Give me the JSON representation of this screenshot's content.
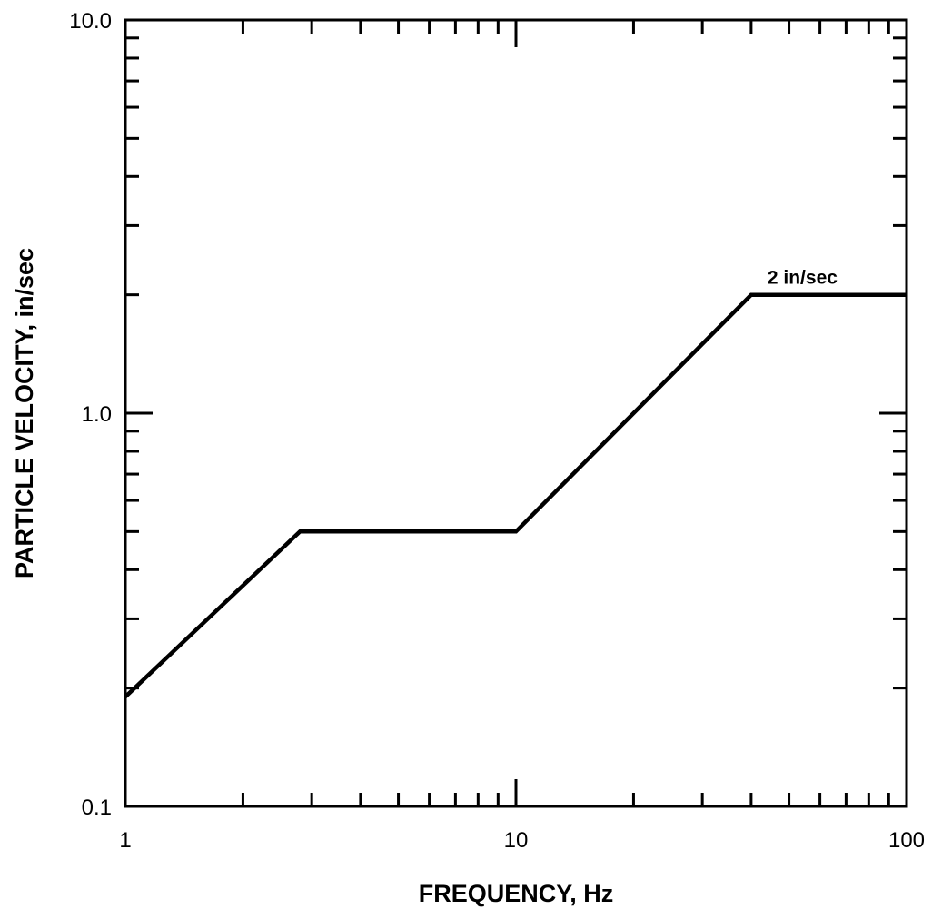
{
  "chart_data": {
    "type": "line",
    "title": "",
    "xlabel": "FREQUENCY, Hz",
    "ylabel": "PARTICLE VELOCITY, in/sec",
    "xscale": "log",
    "yscale": "log",
    "xlim": [
      1,
      100
    ],
    "ylim": [
      0.1,
      10
    ],
    "grid": false,
    "legend": "none",
    "x_tick_labels": [
      {
        "value": 1,
        "label": "1"
      },
      {
        "value": 10,
        "label": "10"
      },
      {
        "value": 100,
        "label": "100"
      }
    ],
    "y_tick_labels": [
      {
        "value": 0.1,
        "label": "0.1"
      },
      {
        "value": 1,
        "label": "1.0"
      },
      {
        "value": 10,
        "label": "10.0"
      }
    ],
    "series": [
      {
        "x": [
          1,
          2.8,
          10,
          40,
          100
        ],
        "y": [
          0.19,
          0.5,
          0.5,
          2,
          2
        ]
      }
    ],
    "annotations": [
      {
        "text": "2 in/sec",
        "x": 40,
        "y": 2
      }
    ],
    "line_color": "#000000"
  }
}
